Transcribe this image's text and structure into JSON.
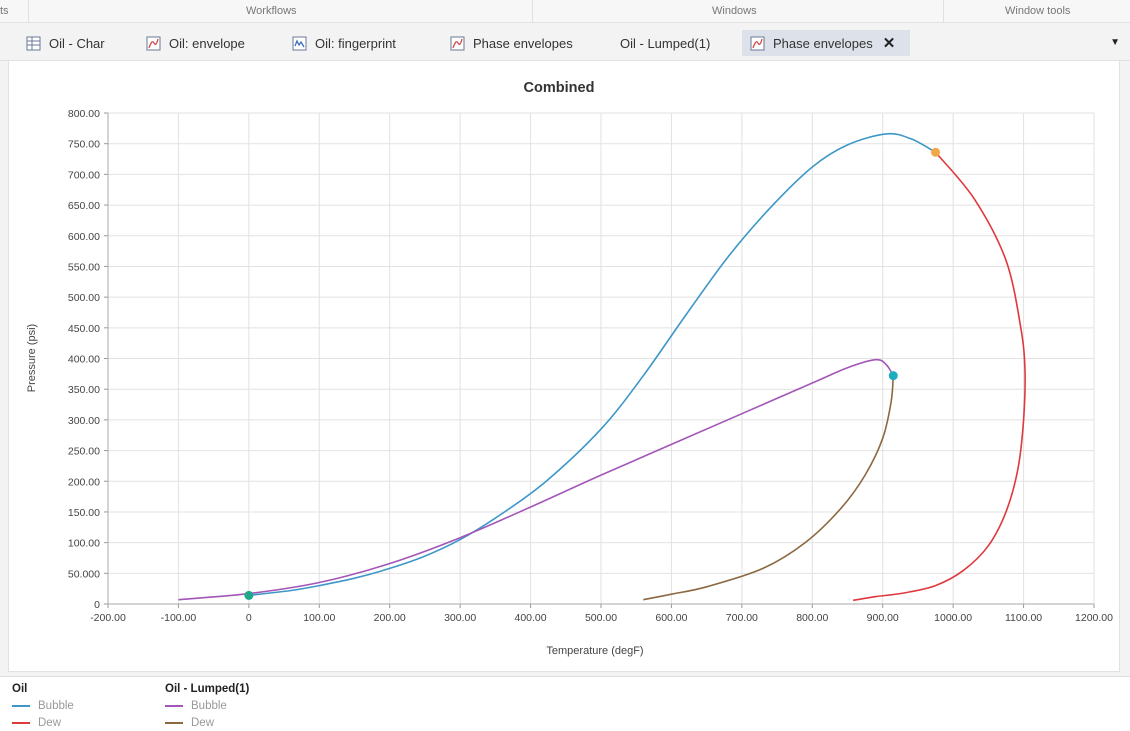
{
  "ribbon": {
    "groups": [
      "ts",
      "Workflows",
      "Windows",
      "Window tools"
    ]
  },
  "tabs": [
    {
      "label": "Oil - Char",
      "icon": "table-icon",
      "active": false
    },
    {
      "label": "Oil: envelope",
      "icon": "line-chart-icon",
      "active": false
    },
    {
      "label": "Oil: fingerprint",
      "icon": "fingerprint-chart-icon",
      "active": false
    },
    {
      "label": "Phase envelopes",
      "icon": "line-chart-icon",
      "active": false
    },
    {
      "label": "Oil - Lumped(1)",
      "icon": "",
      "active": false
    },
    {
      "label": "Phase envelopes",
      "icon": "line-chart-icon",
      "active": true,
      "close": "✕"
    }
  ],
  "tab_overflow_icon": "▼",
  "colors": {
    "oil_bubble": "#3d97c8",
    "oil_dew": "#e0383d",
    "lumped_bubble": "#a356b8",
    "lumped_dew": "#8b6840",
    "oil_critical_point": "#f0a848",
    "lumped_critical_point": "#1aaec0",
    "start_point": "#1fa98a"
  },
  "chart_data": {
    "type": "line",
    "title": "Combined",
    "xlabel": "Temperature (degF)",
    "ylabel": "Pressure (psi)",
    "xlim": [
      -200,
      1200
    ],
    "ylim": [
      0,
      800
    ],
    "xticks": [
      "-200.00",
      "-100.00",
      "0",
      "100.00",
      "200.00",
      "300.00",
      "400.00",
      "500.00",
      "600.00",
      "700.00",
      "800.00",
      "900.00",
      "1000.00",
      "1100.00",
      "1200.00"
    ],
    "yticks": [
      "0",
      "50.000",
      "100.00",
      "150.00",
      "200.00",
      "250.00",
      "300.00",
      "350.00",
      "400.00",
      "450.00",
      "500.00",
      "550.00",
      "600.00",
      "650.00",
      "700.00",
      "750.00",
      "800.00"
    ],
    "grid": true,
    "series": [
      {
        "group": "Oil",
        "name": "Bubble",
        "color": "#3d97c8",
        "points": [
          [
            0,
            14
          ],
          [
            60,
            22
          ],
          [
            100,
            30
          ],
          [
            150,
            42
          ],
          [
            200,
            58
          ],
          [
            250,
            78
          ],
          [
            300,
            105
          ],
          [
            350,
            140
          ],
          [
            420,
            198
          ],
          [
            500,
            285
          ],
          [
            560,
            372
          ],
          [
            620,
            470
          ],
          [
            680,
            565
          ],
          [
            740,
            645
          ],
          [
            800,
            712
          ],
          [
            850,
            748
          ],
          [
            905,
            766
          ],
          [
            940,
            758
          ],
          [
            975,
            736
          ]
        ]
      },
      {
        "group": "Oil",
        "name": "Dew",
        "color": "#e0383d",
        "points": [
          [
            975,
            736
          ],
          [
            1030,
            660
          ],
          [
            1075,
            560
          ],
          [
            1096,
            450
          ],
          [
            1102,
            380
          ],
          [
            1100,
            300
          ],
          [
            1092,
            220
          ],
          [
            1075,
            150
          ],
          [
            1050,
            95
          ],
          [
            1015,
            55
          ],
          [
            975,
            30
          ],
          [
            930,
            18
          ],
          [
            890,
            12
          ],
          [
            858,
            6
          ]
        ]
      },
      {
        "group": "Oil - Lumped(1)",
        "name": "Bubble",
        "color": "#a356b8",
        "points": [
          [
            -100,
            7
          ],
          [
            0,
            17
          ],
          [
            100,
            35
          ],
          [
            200,
            66
          ],
          [
            300,
            108
          ],
          [
            400,
            158
          ],
          [
            500,
            210
          ],
          [
            600,
            260
          ],
          [
            700,
            310
          ],
          [
            800,
            360
          ],
          [
            850,
            385
          ],
          [
            890,
            398
          ],
          [
            905,
            390
          ],
          [
            915,
            372
          ]
        ]
      },
      {
        "group": "Oil - Lumped(1)",
        "name": "Dew",
        "color": "#8b6840",
        "points": [
          [
            915,
            372
          ],
          [
            912,
            330
          ],
          [
            900,
            270
          ],
          [
            875,
            210
          ],
          [
            840,
            155
          ],
          [
            790,
            100
          ],
          [
            730,
            58
          ],
          [
            650,
            28
          ],
          [
            600,
            16
          ],
          [
            560,
            7
          ]
        ]
      }
    ],
    "markers": [
      {
        "x": 0,
        "y": 14,
        "color": "#1fa98a"
      },
      {
        "x": 975,
        "y": 736,
        "color": "#f0a848"
      },
      {
        "x": 915,
        "y": 372,
        "color": "#1aaec0"
      }
    ]
  },
  "legend": [
    {
      "title": "Oil",
      "items": [
        {
          "label": "Bubble",
          "color": "#3d97c8"
        },
        {
          "label": "Dew",
          "color": "#e0383d"
        }
      ]
    },
    {
      "title": "Oil - Lumped(1)",
      "items": [
        {
          "label": "Bubble",
          "color": "#a356b8"
        },
        {
          "label": "Dew",
          "color": "#8b6840"
        }
      ]
    }
  ]
}
